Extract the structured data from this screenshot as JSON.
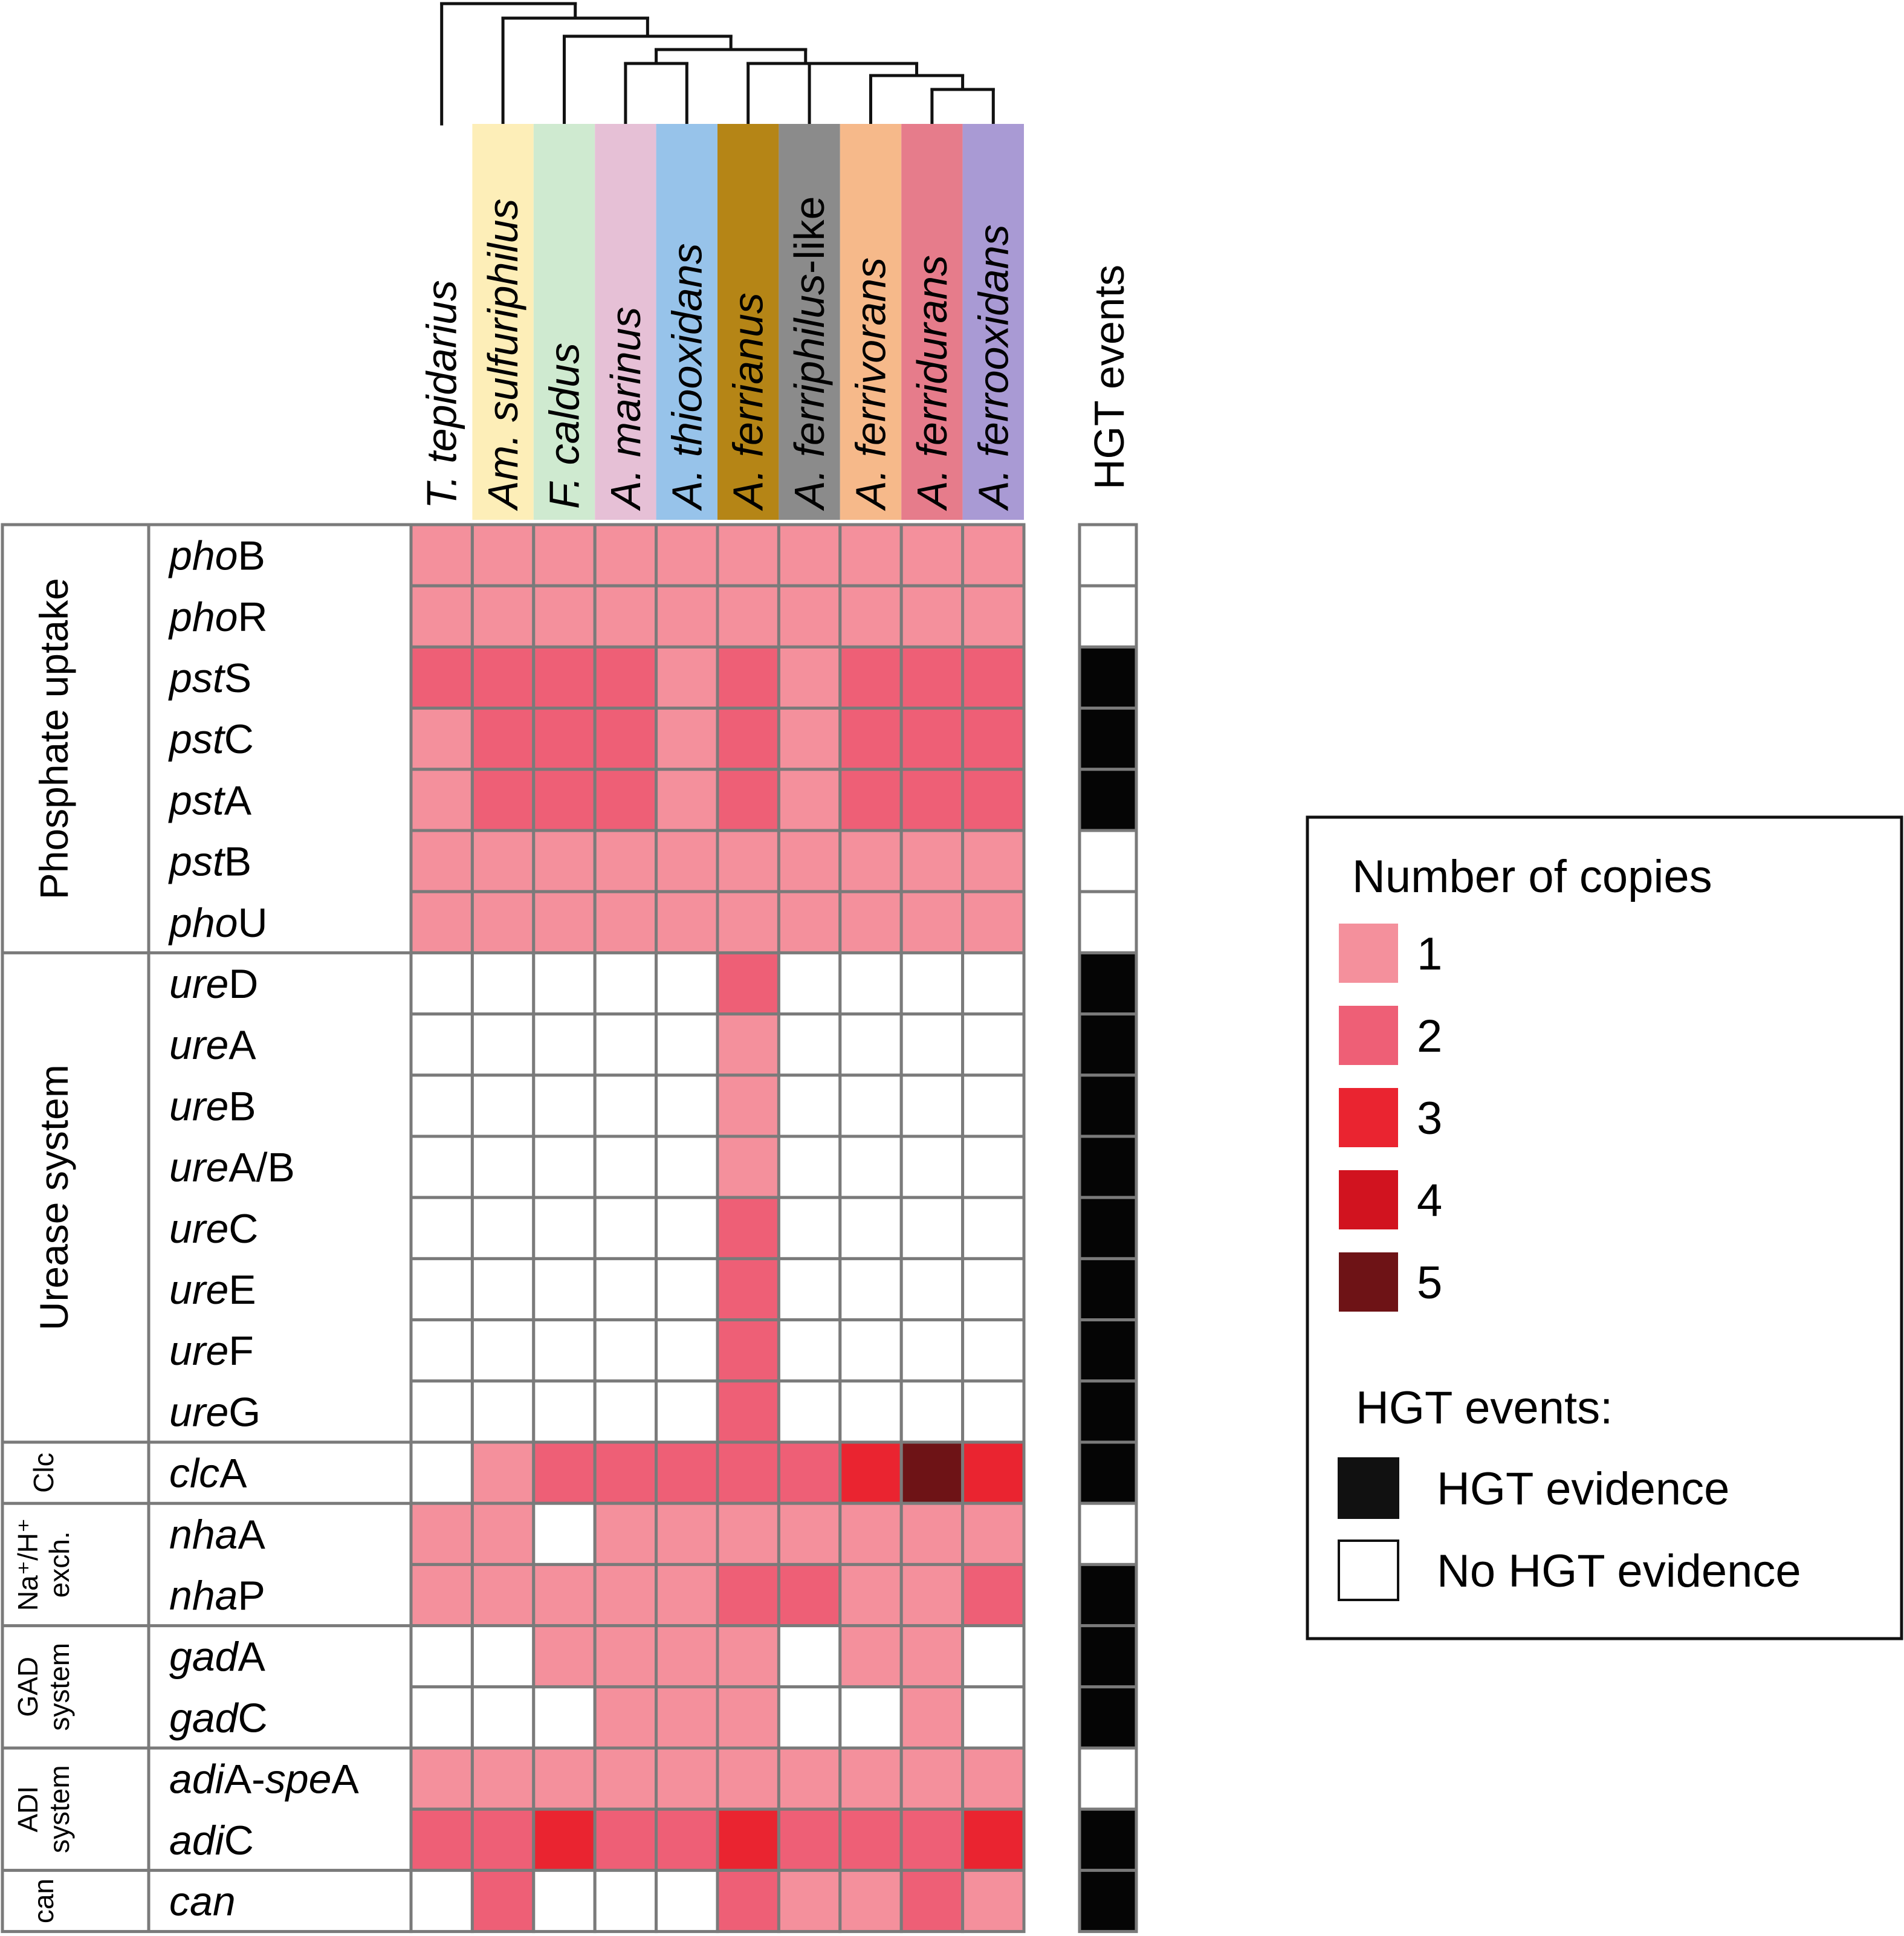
{
  "chart_data": {
    "type": "heatmap",
    "title": "",
    "value_legend_title": "Number of copies",
    "copy_levels": [
      {
        "value": 0,
        "label": "",
        "color": "#ffffff"
      },
      {
        "value": 1,
        "label": "1",
        "color": "#f4909c"
      },
      {
        "value": 2,
        "label": "2",
        "color": "#ee5f76"
      },
      {
        "value": 3,
        "label": "3",
        "color": "#ea2430"
      },
      {
        "value": 4,
        "label": "4",
        "color": "#d1131f"
      },
      {
        "value": 5,
        "label": "5",
        "color": "#6e1316"
      }
    ],
    "species": [
      {
        "genus": "T.",
        "epithet": "tepidarius",
        "suffix": "",
        "color": "#ffffff"
      },
      {
        "genus": "Am.",
        "epithet": "sulfuriphilus",
        "suffix": "",
        "color": "#fdeeb8"
      },
      {
        "genus": "F.",
        "epithet": "caldus",
        "suffix": "",
        "color": "#cfead0"
      },
      {
        "genus": "A.",
        "epithet": "marinus",
        "suffix": "",
        "color": "#e6c0d6"
      },
      {
        "genus": "A.",
        "epithet": "thiooxidans",
        "suffix": "",
        "color": "#97c3ea"
      },
      {
        "genus": "A.",
        "epithet": "ferrianus",
        "suffix": "",
        "color": "#b58516"
      },
      {
        "genus": "A.",
        "epithet": "ferriphilus",
        "suffix": "-like",
        "color": "#8b8b8b"
      },
      {
        "genus": "A.",
        "epithet": "ferrivorans",
        "suffix": "",
        "color": "#f6b98a"
      },
      {
        "genus": "A.",
        "epithet": "ferridurans",
        "suffix": "",
        "color": "#e67c8b"
      },
      {
        "genus": "A.",
        "epithet": "ferrooxidans",
        "suffix": "",
        "color": "#a99ad4"
      }
    ],
    "categories": [
      {
        "name": "Phosphate uptake",
        "size": "large",
        "lines": [
          "Phosphate uptake"
        ],
        "n_genes": 7
      },
      {
        "name": "Urease system",
        "size": "large",
        "lines": [
          "Urease system"
        ],
        "n_genes": 8
      },
      {
        "name": "Clc",
        "size": "small",
        "lines": [
          "Clc"
        ],
        "n_genes": 1
      },
      {
        "name": "Na+/H+ exch.",
        "size": "small",
        "lines": [
          "Na⁺/H⁺",
          "exch."
        ],
        "n_genes": 2
      },
      {
        "name": "GAD system",
        "size": "small",
        "lines": [
          "GAD",
          "system"
        ],
        "n_genes": 2
      },
      {
        "name": "ADI system",
        "size": "small",
        "lines": [
          "ADI",
          "system"
        ],
        "n_genes": 2
      },
      {
        "name": "can",
        "size": "small",
        "lines": [
          "can"
        ],
        "n_genes": 1
      }
    ],
    "genes": [
      {
        "prefix": "pho",
        "suffix": "B",
        "hgt": false,
        "values": [
          1,
          1,
          1,
          1,
          1,
          1,
          1,
          1,
          1,
          1
        ]
      },
      {
        "prefix": "pho",
        "suffix": "R",
        "hgt": false,
        "values": [
          1,
          1,
          1,
          1,
          1,
          1,
          1,
          1,
          1,
          1
        ]
      },
      {
        "prefix": "pst",
        "suffix": "S",
        "hgt": true,
        "values": [
          2,
          2,
          2,
          2,
          1,
          2,
          1,
          2,
          2,
          2
        ]
      },
      {
        "prefix": "pst",
        "suffix": "C",
        "hgt": true,
        "values": [
          1,
          2,
          2,
          2,
          1,
          2,
          1,
          2,
          2,
          2
        ]
      },
      {
        "prefix": "pst",
        "suffix": "A",
        "hgt": true,
        "values": [
          1,
          2,
          2,
          2,
          1,
          2,
          1,
          2,
          2,
          2
        ]
      },
      {
        "prefix": "pst",
        "suffix": "B",
        "hgt": false,
        "values": [
          1,
          1,
          1,
          1,
          1,
          1,
          1,
          1,
          1,
          1
        ]
      },
      {
        "prefix": "pho",
        "suffix": "U",
        "hgt": false,
        "values": [
          1,
          1,
          1,
          1,
          1,
          1,
          1,
          1,
          1,
          1
        ]
      },
      {
        "prefix": "ure",
        "suffix": "D",
        "hgt": true,
        "values": [
          0,
          0,
          0,
          0,
          0,
          2,
          0,
          0,
          0,
          0
        ]
      },
      {
        "prefix": "ure",
        "suffix": "A",
        "hgt": true,
        "values": [
          0,
          0,
          0,
          0,
          0,
          1,
          0,
          0,
          0,
          0
        ]
      },
      {
        "prefix": "ure",
        "suffix": "B",
        "hgt": true,
        "values": [
          0,
          0,
          0,
          0,
          0,
          1,
          0,
          0,
          0,
          0
        ]
      },
      {
        "prefix": "ure",
        "suffix": "A/B",
        "hgt": true,
        "values": [
          0,
          0,
          0,
          0,
          0,
          1,
          0,
          0,
          0,
          0
        ]
      },
      {
        "prefix": "ure",
        "suffix": "C",
        "hgt": true,
        "values": [
          0,
          0,
          0,
          0,
          0,
          2,
          0,
          0,
          0,
          0
        ]
      },
      {
        "prefix": "ure",
        "suffix": "E",
        "hgt": true,
        "values": [
          0,
          0,
          0,
          0,
          0,
          2,
          0,
          0,
          0,
          0
        ]
      },
      {
        "prefix": "ure",
        "suffix": "F",
        "hgt": true,
        "values": [
          0,
          0,
          0,
          0,
          0,
          2,
          0,
          0,
          0,
          0
        ]
      },
      {
        "prefix": "ure",
        "suffix": "G",
        "hgt": true,
        "values": [
          0,
          0,
          0,
          0,
          0,
          2,
          0,
          0,
          0,
          0
        ]
      },
      {
        "prefix": "clc",
        "suffix": "A",
        "hgt": true,
        "values": [
          0,
          1,
          2,
          2,
          2,
          2,
          2,
          3,
          5,
          3
        ]
      },
      {
        "prefix": "nha",
        "suffix": "A",
        "hgt": false,
        "values": [
          1,
          1,
          0,
          1,
          1,
          1,
          1,
          1,
          1,
          1
        ]
      },
      {
        "prefix": "nha",
        "suffix": "P",
        "hgt": true,
        "values": [
          1,
          1,
          1,
          1,
          1,
          2,
          2,
          1,
          1,
          2
        ]
      },
      {
        "prefix": "gad",
        "suffix": "A",
        "hgt": true,
        "values": [
          0,
          0,
          1,
          1,
          1,
          1,
          0,
          1,
          1,
          0
        ]
      },
      {
        "prefix": "gad",
        "suffix": "C",
        "hgt": true,
        "values": [
          0,
          0,
          0,
          1,
          1,
          1,
          0,
          0,
          1,
          0
        ]
      },
      {
        "prefix": "adi",
        "suffix": "A-",
        "prefix2": "spe",
        "suffix2": "A",
        "hgt": false,
        "values": [
          1,
          1,
          1,
          1,
          1,
          1,
          1,
          1,
          1,
          1
        ]
      },
      {
        "prefix": "adi",
        "suffix": "C",
        "hgt": true,
        "values": [
          2,
          2,
          3,
          2,
          2,
          3,
          2,
          2,
          2,
          3
        ]
      },
      {
        "prefix": "can",
        "suffix": "",
        "hgt": true,
        "values": [
          0,
          2,
          0,
          0,
          0,
          2,
          1,
          1,
          2,
          1
        ]
      }
    ],
    "hgt_column_label": "HGT events",
    "hgt_legend_title": "HGT events:",
    "hgt_legend": [
      {
        "label": "HGT evidence",
        "color": "#111111"
      },
      {
        "label": "No HGT evidence",
        "color": "#ffffff"
      }
    ],
    "dendrogram_topology": "(T. tepidarius,(Am. sulfuriphilus,(F. caldus,((A. marinus,A. thiooxidans),(A. ferrianus,(A. ferriphilus-like,(A. ferrivorans,(A. ferridurans,A. ferrooxidans))))))))"
  }
}
